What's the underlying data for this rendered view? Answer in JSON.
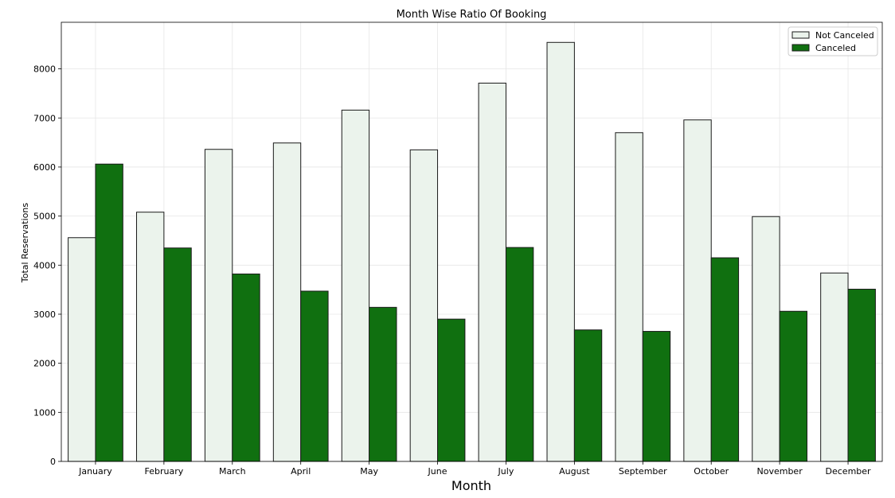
{
  "chart_data": {
    "type": "bar",
    "title": "Month Wise Ratio Of Booking",
    "xlabel": "Month",
    "ylabel": "Total Reservations",
    "categories": [
      "January",
      "February",
      "March",
      "April",
      "May",
      "June",
      "July",
      "August",
      "September",
      "October",
      "November",
      "December"
    ],
    "series": [
      {
        "name": "Not Canceled",
        "color": "#ebf3ec",
        "values": [
          4560,
          5080,
          6360,
          6490,
          7160,
          6350,
          7710,
          8540,
          6700,
          6960,
          4990,
          3840
        ]
      },
      {
        "name": "Canceled",
        "color": "#107010",
        "values": [
          6060,
          4350,
          3820,
          3470,
          3140,
          2900,
          4360,
          2680,
          2650,
          4150,
          3060,
          3510
        ]
      }
    ],
    "ylim": [
      0,
      8950
    ],
    "yticks": [
      0,
      1000,
      2000,
      3000,
      4000,
      5000,
      6000,
      7000,
      8000
    ],
    "grid": true,
    "legend_position": "top-right"
  }
}
